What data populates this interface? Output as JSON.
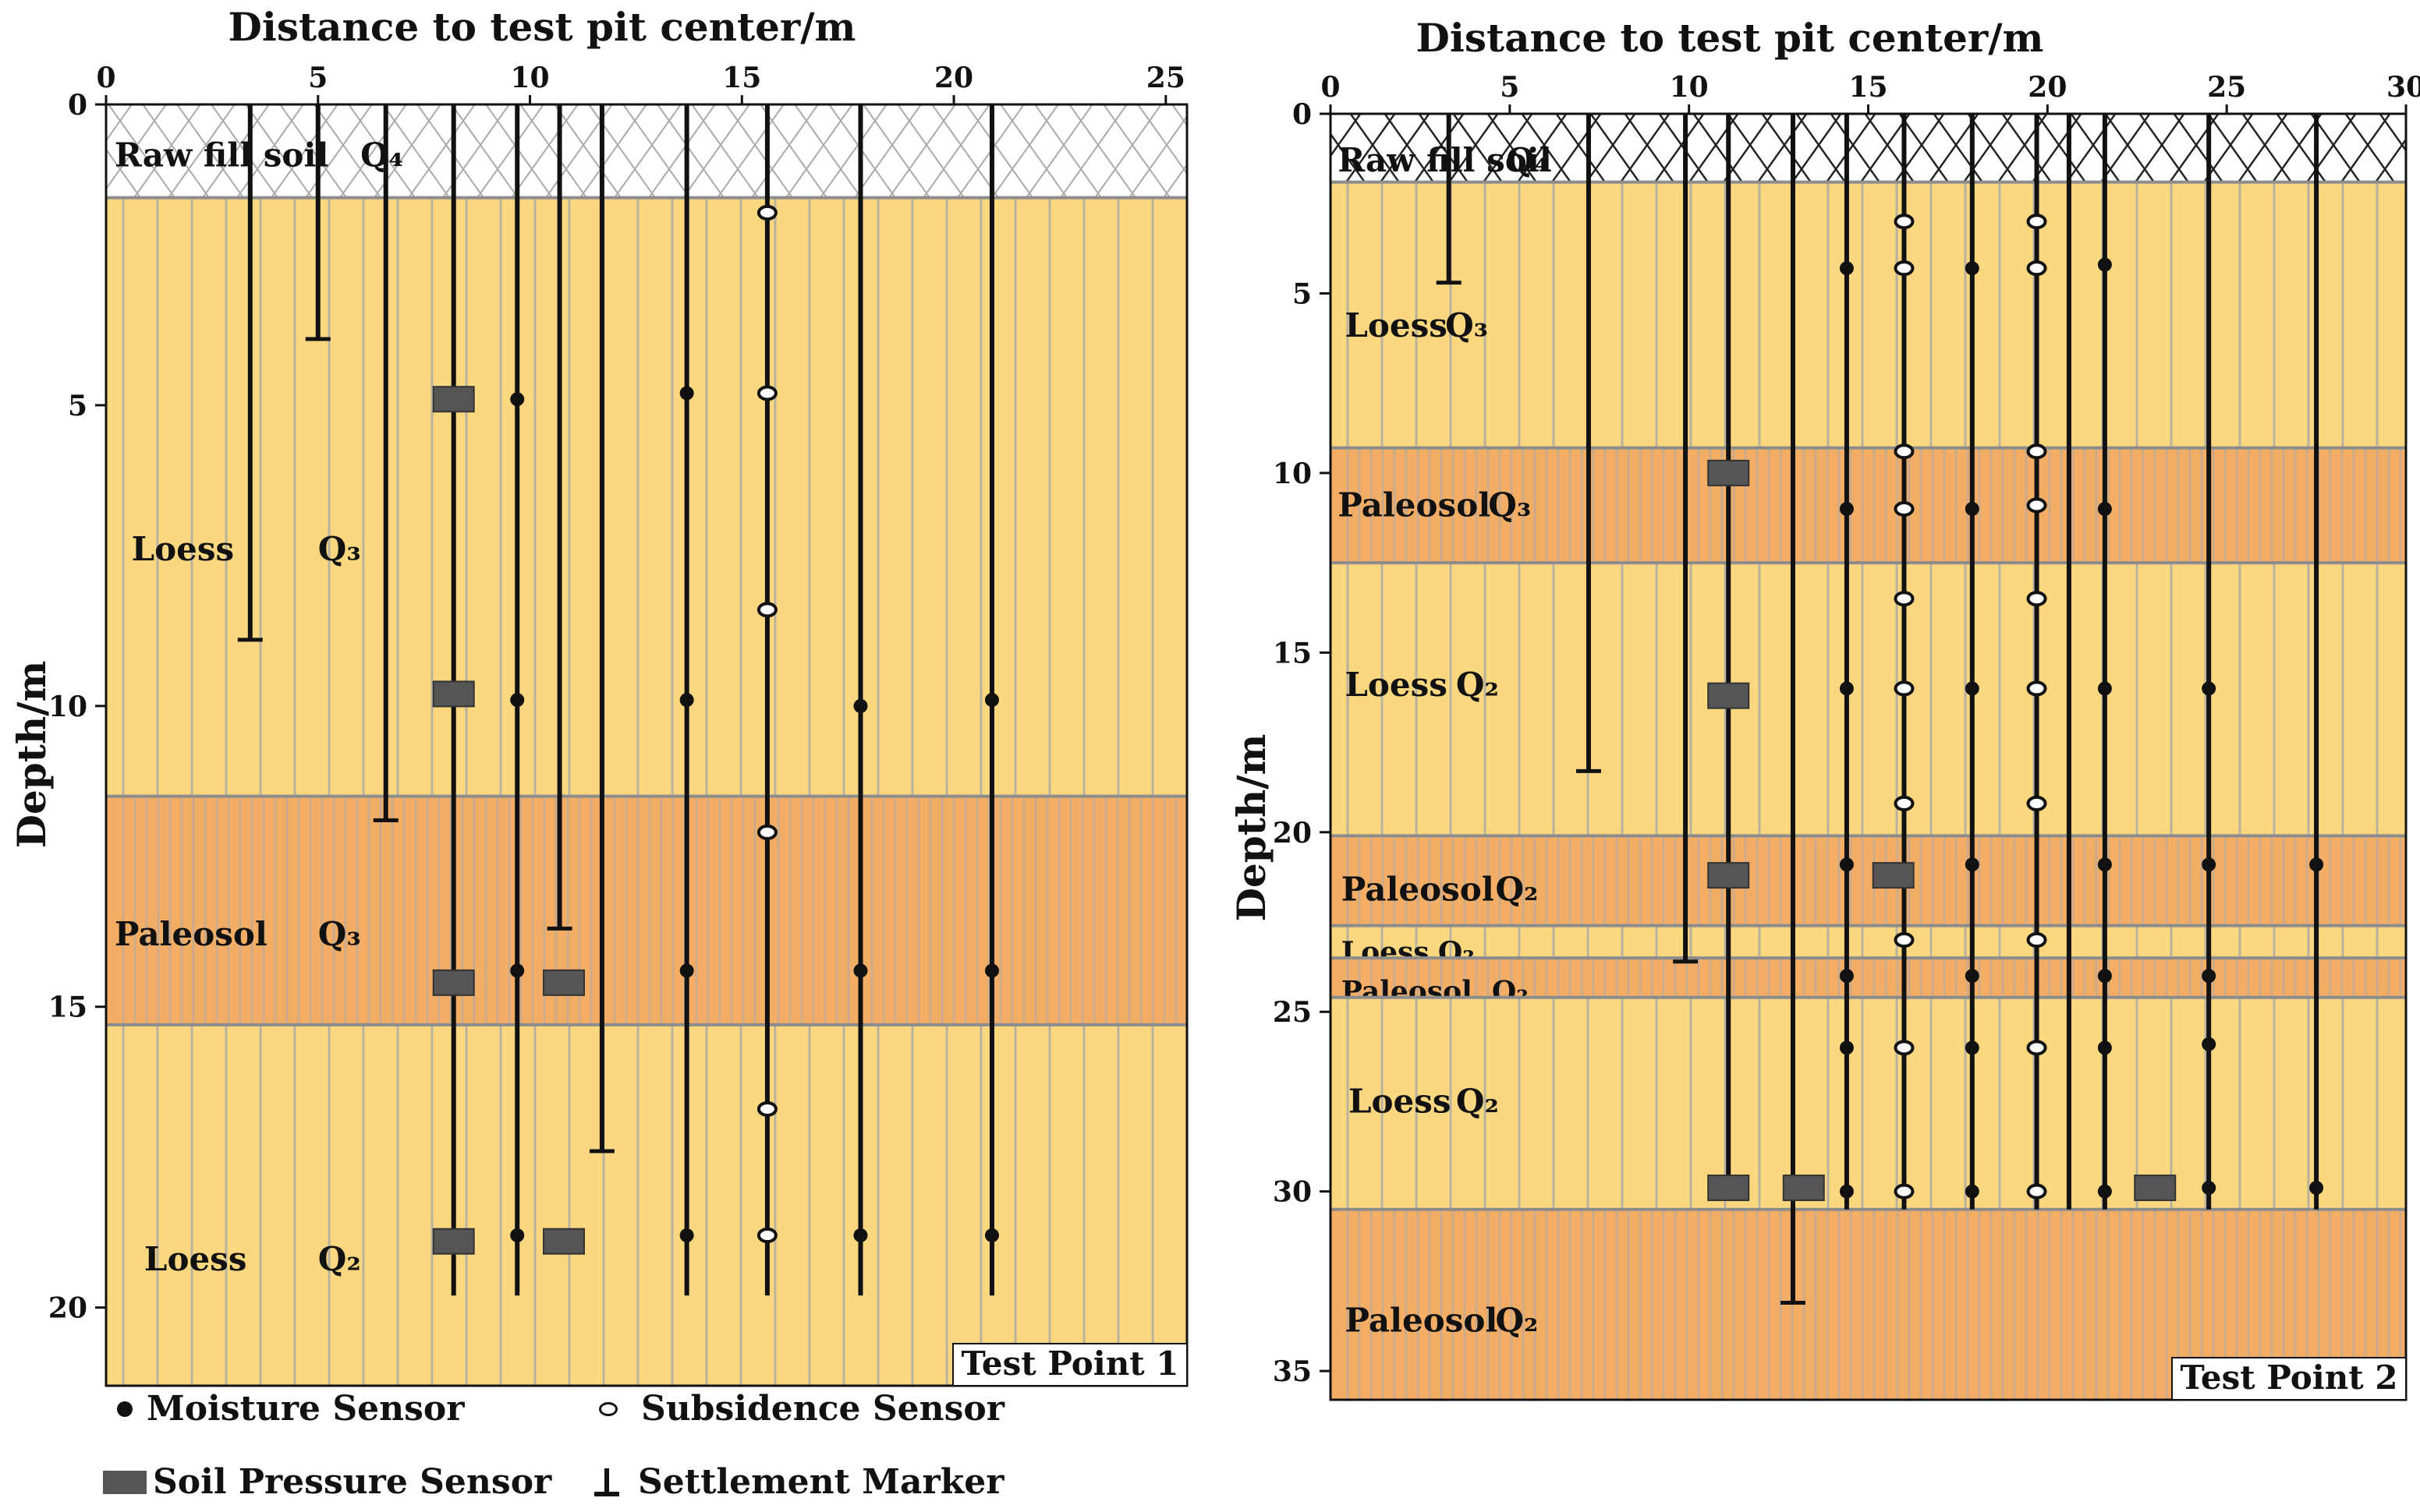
{
  "figure": {
    "x_axis_title": "Distance to test pit center/m",
    "y_axis_title": "Depth/m"
  },
  "colors": {
    "loess": "#FBD77F",
    "paleosol": "#F3AD65",
    "fill": "#FFFFFF",
    "hatch": "#AAAAAA",
    "stripe": "#A9A9A9",
    "boundary": "#8C8C8C",
    "line": "#111111",
    "pressure": "#555555"
  },
  "legend": {
    "moisture_label": "Moisture Sensor",
    "subsidence_label": "Subsidence  Sensor",
    "pressure_label": "Soil Pressure Sensor",
    "marker_label": "Settlement Marker"
  },
  "chart_data": [
    {
      "type": "diagram",
      "title": "Test Point 1",
      "xlabel": "Distance to test pit center/m",
      "ylabel": "Depth/m",
      "xlim": [
        0,
        25.5
      ],
      "ylim": [
        0,
        21.3
      ],
      "xticks": [
        0,
        5,
        10,
        15,
        20,
        25
      ],
      "yticks": [
        0,
        5,
        10,
        15,
        20
      ],
      "layers": [
        {
          "name": "Raw fill soil",
          "age": "Q₄",
          "kind": "fill",
          "top": 0,
          "bottom": 1.55,
          "label_x": 0.2,
          "age_x": 6.0,
          "label_y": 0.85
        },
        {
          "name": "Loess",
          "age": "Q₃",
          "kind": "loess",
          "top": 1.55,
          "bottom": 11.5,
          "label_x": 0.6,
          "age_x": 5.0,
          "label_y": 7.4
        },
        {
          "name": "Paleosol",
          "age": "Q₃",
          "kind": "paleosol",
          "top": 11.5,
          "bottom": 15.3,
          "label_x": 0.2,
          "age_x": 5.0,
          "label_y": 13.8
        },
        {
          "name": "Loess",
          "age": "Q₂",
          "kind": "loess",
          "top": 15.3,
          "bottom": 21.3,
          "label_x": 0.9,
          "age_x": 5.0,
          "label_y": 19.2
        }
      ],
      "boreholes": [
        {
          "x": 3.4,
          "bottom": 8.9,
          "marker": true
        },
        {
          "x": 5.0,
          "bottom": 3.9,
          "marker": true
        },
        {
          "x": 6.6,
          "bottom": 11.9,
          "marker": true
        },
        {
          "x": 8.2,
          "bottom": 19.8,
          "marker": false
        },
        {
          "x": 9.7,
          "bottom": 19.8,
          "marker": false
        },
        {
          "x": 10.7,
          "bottom": 13.7,
          "marker": true
        },
        {
          "x": 11.7,
          "bottom": 17.4,
          "marker": true
        },
        {
          "x": 13.7,
          "bottom": 19.8,
          "marker": false
        },
        {
          "x": 15.6,
          "bottom": 19.8,
          "marker": false
        },
        {
          "x": 17.8,
          "bottom": 19.8,
          "marker": false
        },
        {
          "x": 20.9,
          "bottom": 19.8,
          "marker": false
        }
      ],
      "moisture": [
        {
          "x": 9.7,
          "y": 4.9
        },
        {
          "x": 13.7,
          "y": 4.8
        },
        {
          "x": 9.7,
          "y": 9.9
        },
        {
          "x": 13.7,
          "y": 9.9
        },
        {
          "x": 17.8,
          "y": 10.0
        },
        {
          "x": 20.9,
          "y": 9.9
        },
        {
          "x": 9.7,
          "y": 14.4
        },
        {
          "x": 13.7,
          "y": 14.4
        },
        {
          "x": 17.8,
          "y": 14.4
        },
        {
          "x": 20.9,
          "y": 14.4
        },
        {
          "x": 9.7,
          "y": 18.8
        },
        {
          "x": 13.7,
          "y": 18.8
        },
        {
          "x": 17.8,
          "y": 18.8
        },
        {
          "x": 20.9,
          "y": 18.8
        }
      ],
      "subsidence": [
        {
          "x": 15.6,
          "y": 1.8
        },
        {
          "x": 15.6,
          "y": 4.8
        },
        {
          "x": 15.6,
          "y": 8.4
        },
        {
          "x": 15.6,
          "y": 12.1
        },
        {
          "x": 15.6,
          "y": 16.7
        },
        {
          "x": 15.6,
          "y": 18.8
        }
      ],
      "pressure": [
        {
          "x": 8.2,
          "y": 4.9
        },
        {
          "x": 8.2,
          "y": 9.8
        },
        {
          "x": 8.2,
          "y": 14.6
        },
        {
          "x": 10.8,
          "y": 14.6
        },
        {
          "x": 8.2,
          "y": 18.9
        },
        {
          "x": 10.8,
          "y": 18.9
        }
      ]
    },
    {
      "type": "diagram",
      "title": "Test Point 2",
      "xlabel": "Distance to test pit center/m",
      "ylabel": "Depth/m",
      "xlim": [
        0,
        30
      ],
      "ylim": [
        0,
        35.8
      ],
      "xticks": [
        0,
        5,
        10,
        15,
        20,
        25,
        30
      ],
      "yticks": [
        0,
        5,
        10,
        15,
        20,
        25,
        30,
        35
      ],
      "layers": [
        {
          "name": "Raw fill soil",
          "age": "Q₄",
          "kind": "fill",
          "top": 0,
          "bottom": 1.9,
          "label_x": 0.2,
          "age_x": 4.9,
          "label_y": 1.3
        },
        {
          "name": "Loess",
          "age": "Q₃",
          "kind": "loess",
          "top": 1.9,
          "bottom": 9.3,
          "label_x": 0.4,
          "age_x": 3.2,
          "label_y": 5.9
        },
        {
          "name": "Paleosol",
          "age": "Q₃",
          "kind": "paleosol",
          "top": 9.3,
          "bottom": 12.5,
          "label_x": 0.2,
          "age_x": 4.4,
          "label_y": 10.9
        },
        {
          "name": "Loess",
          "age": "Q₂",
          "kind": "loess",
          "top": 12.5,
          "bottom": 20.1,
          "label_x": 0.4,
          "age_x": 3.5,
          "label_y": 15.9
        },
        {
          "name": "Paleosol",
          "age": "Q₂",
          "kind": "paleosol",
          "top": 20.1,
          "bottom": 22.6,
          "label_x": 0.3,
          "age_x": 4.6,
          "label_y": 21.6
        },
        {
          "name": "Loess",
          "age": "Q₂",
          "kind": "loess",
          "top": 22.6,
          "bottom": 23.5,
          "label_x": 0.3,
          "age_x": 3.0,
          "label_y": 23.3
        },
        {
          "name": "Paleosol",
          "age": "Q₂",
          "kind": "paleosol",
          "top": 23.5,
          "bottom": 24.6,
          "label_x": 0.3,
          "age_x": 4.5,
          "label_y": 24.4
        },
        {
          "name": "Loess",
          "age": "Q₂",
          "kind": "loess",
          "top": 24.6,
          "bottom": 30.5,
          "label_x": 0.5,
          "age_x": 3.5,
          "label_y": 27.5
        },
        {
          "name": "Paleosol",
          "age": "Q₂",
          "kind": "paleosol",
          "top": 30.5,
          "bottom": 35.8,
          "label_x": 0.4,
          "age_x": 4.6,
          "label_y": 33.6
        }
      ],
      "boreholes": [
        {
          "x": 3.3,
          "bottom": 4.7,
          "marker": true
        },
        {
          "x": 7.2,
          "bottom": 18.3,
          "marker": true
        },
        {
          "x": 9.9,
          "bottom": 23.6,
          "marker": true
        },
        {
          "x": 11.1,
          "bottom": 30.2,
          "marker": false
        },
        {
          "x": 12.9,
          "bottom": 33.1,
          "marker": true
        },
        {
          "x": 14.4,
          "bottom": 30.5,
          "marker": false
        },
        {
          "x": 16.0,
          "bottom": 30.5,
          "marker": false
        },
        {
          "x": 17.9,
          "bottom": 30.5,
          "marker": false
        },
        {
          "x": 19.7,
          "bottom": 30.5,
          "marker": false
        },
        {
          "x": 20.6,
          "bottom": 30.5,
          "marker": false
        },
        {
          "x": 21.6,
          "bottom": 30.5,
          "marker": false
        },
        {
          "x": 24.5,
          "bottom": 30.5,
          "marker": false
        },
        {
          "x": 27.5,
          "bottom": 30.5,
          "marker": false
        }
      ],
      "moisture": [
        {
          "x": 14.4,
          "y": 4.3
        },
        {
          "x": 17.9,
          "y": 4.3
        },
        {
          "x": 21.6,
          "y": 4.2
        },
        {
          "x": 14.4,
          "y": 11.0
        },
        {
          "x": 17.9,
          "y": 11.0
        },
        {
          "x": 21.6,
          "y": 11.0
        },
        {
          "x": 14.4,
          "y": 16.0
        },
        {
          "x": 17.9,
          "y": 16.0
        },
        {
          "x": 21.6,
          "y": 16.0
        },
        {
          "x": 24.5,
          "y": 16.0
        },
        {
          "x": 14.4,
          "y": 20.9
        },
        {
          "x": 17.9,
          "y": 20.9
        },
        {
          "x": 21.6,
          "y": 20.9
        },
        {
          "x": 24.5,
          "y": 20.9
        },
        {
          "x": 27.5,
          "y": 20.9
        },
        {
          "x": 14.4,
          "y": 24.0
        },
        {
          "x": 17.9,
          "y": 24.0
        },
        {
          "x": 21.6,
          "y": 24.0
        },
        {
          "x": 24.5,
          "y": 24.0
        },
        {
          "x": 14.4,
          "y": 26.0
        },
        {
          "x": 17.9,
          "y": 26.0
        },
        {
          "x": 21.6,
          "y": 26.0
        },
        {
          "x": 24.5,
          "y": 25.9
        },
        {
          "x": 14.4,
          "y": 30.0
        },
        {
          "x": 17.9,
          "y": 30.0
        },
        {
          "x": 21.6,
          "y": 30.0
        },
        {
          "x": 24.5,
          "y": 29.9
        },
        {
          "x": 27.5,
          "y": 29.9
        }
      ],
      "subsidence": [
        {
          "x": 16.0,
          "y": 3.0
        },
        {
          "x": 19.7,
          "y": 3.0
        },
        {
          "x": 16.0,
          "y": 4.3
        },
        {
          "x": 19.7,
          "y": 4.3
        },
        {
          "x": 16.0,
          "y": 9.4
        },
        {
          "x": 19.7,
          "y": 9.4
        },
        {
          "x": 16.0,
          "y": 11.0
        },
        {
          "x": 19.7,
          "y": 10.9
        },
        {
          "x": 16.0,
          "y": 13.5
        },
        {
          "x": 19.7,
          "y": 13.5
        },
        {
          "x": 16.0,
          "y": 16.0
        },
        {
          "x": 19.7,
          "y": 16.0
        },
        {
          "x": 16.0,
          "y": 19.2
        },
        {
          "x": 19.7,
          "y": 19.2
        },
        {
          "x": 16.0,
          "y": 23.0
        },
        {
          "x": 19.7,
          "y": 23.0
        },
        {
          "x": 16.0,
          "y": 26.0
        },
        {
          "x": 19.7,
          "y": 26.0
        },
        {
          "x": 16.0,
          "y": 30.0
        },
        {
          "x": 19.7,
          "y": 30.0
        }
      ],
      "pressure": [
        {
          "x": 11.1,
          "y": 10.0
        },
        {
          "x": 11.1,
          "y": 16.2
        },
        {
          "x": 11.1,
          "y": 21.2
        },
        {
          "x": 15.7,
          "y": 21.2
        },
        {
          "x": 11.1,
          "y": 29.9
        },
        {
          "x": 13.2,
          "y": 29.9
        },
        {
          "x": 23.0,
          "y": 29.9
        }
      ]
    }
  ]
}
